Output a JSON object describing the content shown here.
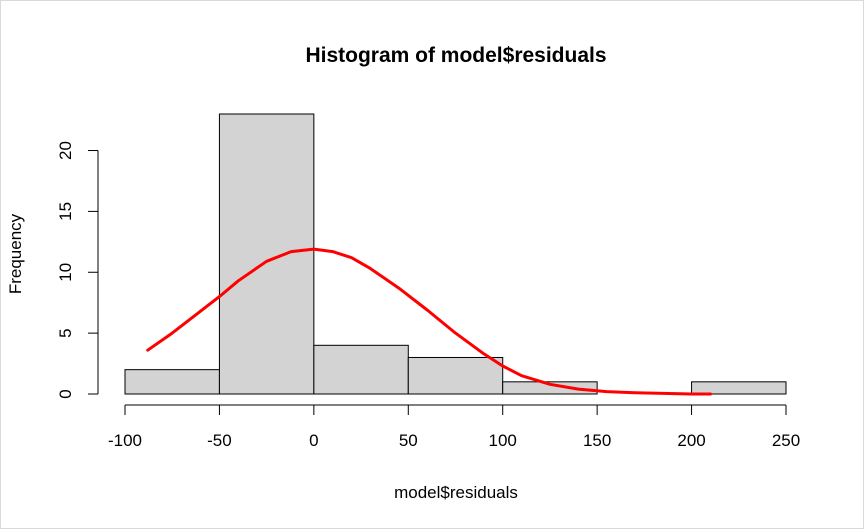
{
  "chart_data": {
    "type": "bar",
    "title": "Histogram of model$residuals",
    "xlabel": "model$residuals",
    "ylabel": "Frequency",
    "bins": [
      {
        "x0": -100,
        "x1": -50,
        "count": 2
      },
      {
        "x0": -50,
        "x1": 0,
        "count": 23
      },
      {
        "x0": 0,
        "x1": 50,
        "count": 4
      },
      {
        "x0": 50,
        "x1": 100,
        "count": 3
      },
      {
        "x0": 100,
        "x1": 150,
        "count": 1
      },
      {
        "x0": 150,
        "x1": 200,
        "count": 0
      },
      {
        "x0": 200,
        "x1": 250,
        "count": 1
      }
    ],
    "xticks": [
      -100,
      -50,
      0,
      50,
      100,
      150,
      200,
      250
    ],
    "xtick_labels": [
      "-100",
      "-50",
      "0",
      "50",
      "100",
      "150",
      "200",
      "250"
    ],
    "yticks": [
      0,
      5,
      10,
      15,
      20
    ],
    "ytick_labels": [
      "0",
      "5",
      "10",
      "15",
      "20"
    ],
    "xlim": [
      -100,
      250
    ],
    "ylim": [
      0,
      23
    ],
    "grid": false,
    "bar_color": "#d3d3d3",
    "curve": {
      "color": "#ff0000",
      "x": [
        -88,
        -75,
        -60,
        -50,
        -40,
        -25,
        -12,
        0,
        10,
        20,
        30,
        45,
        60,
        75,
        90,
        100,
        110,
        125,
        140,
        155,
        170,
        185,
        200,
        210
      ],
      "y": [
        3.6,
        5.0,
        6.8,
        8.0,
        9.3,
        10.9,
        11.7,
        11.9,
        11.7,
        11.2,
        10.3,
        8.7,
        6.9,
        5.0,
        3.3,
        2.3,
        1.5,
        0.8,
        0.4,
        0.2,
        0.1,
        0.05,
        0.0,
        0.0
      ]
    }
  }
}
